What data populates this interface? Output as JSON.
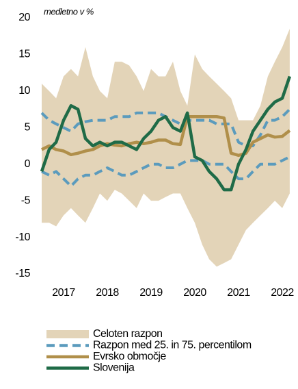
{
  "chart_data": {
    "type": "line",
    "subtitle": "medletno v %",
    "x": [
      2016.5,
      2016.67,
      2016.83,
      2017.0,
      2017.17,
      2017.33,
      2017.5,
      2017.67,
      2017.83,
      2018.0,
      2018.17,
      2018.33,
      2018.5,
      2018.67,
      2018.83,
      2019.0,
      2019.17,
      2019.33,
      2019.5,
      2019.67,
      2019.83,
      2020.0,
      2020.17,
      2020.33,
      2020.5,
      2020.67,
      2020.83,
      2021.0,
      2021.17,
      2021.33,
      2021.5,
      2021.67,
      2021.83,
      2022.0,
      2022.17
    ],
    "xlim": [
      2016.5,
      2022.2
    ],
    "xticks": [
      2017,
      2018,
      2019,
      2020,
      2021,
      2022
    ],
    "ylim": [
      -15,
      20
    ],
    "yticks": [
      20,
      15,
      10,
      5,
      0,
      -5,
      -10,
      -15
    ],
    "series": [
      {
        "name": "Celoten razpon",
        "color": "#e3d4b8",
        "style": "area",
        "values": [
          11,
          10,
          9,
          12,
          13,
          12,
          16,
          12,
          10,
          9,
          14,
          14,
          13.5,
          12,
          10,
          13,
          12,
          12,
          14,
          10,
          8,
          15,
          13,
          12,
          11,
          10,
          9,
          6,
          6,
          6,
          8,
          12,
          14,
          16,
          18.5
        ],
        "lower": [
          -8,
          -8,
          -8.5,
          -7,
          -6,
          -7,
          -8,
          -6,
          -4,
          -5,
          -3.5,
          -4,
          -5,
          -6,
          -4,
          -5,
          -5,
          -4.5,
          -4,
          -4,
          -6,
          -8,
          -11,
          -13,
          -14,
          -13.5,
          -13,
          -11,
          -9,
          -8,
          -7,
          -6,
          -5,
          -6,
          -4
        ]
      },
      {
        "name": "Razpon med 25. in 75. percentilom",
        "color": "#5b9bbd",
        "style": "dashed",
        "values": [
          7,
          6,
          5.5,
          5,
          4.5,
          5.5,
          5.8,
          6,
          6,
          6,
          6.5,
          6.5,
          6.5,
          7,
          7,
          7,
          7,
          6.5,
          6,
          5.5,
          6,
          6,
          6,
          6,
          5.5,
          5.5,
          5.5,
          3,
          2.5,
          2.5,
          4,
          6,
          6,
          6.5,
          7.5
        ],
        "lower": [
          -1,
          -1.5,
          -1,
          -2,
          -3,
          -2,
          -1.5,
          -1.5,
          -1,
          -0.5,
          -1,
          -1.5,
          -1.5,
          -1,
          -0.5,
          0,
          0,
          -0.5,
          -0.5,
          0,
          0.5,
          0.5,
          0.5,
          0,
          0,
          0,
          -1,
          -2,
          -2,
          -1,
          0,
          0,
          0,
          0.5,
          1
        ]
      },
      {
        "name": "Evrsko območje",
        "color": "#b08f4a",
        "style": "solid",
        "values": [
          2,
          2.5,
          2,
          1.8,
          1.3,
          1.5,
          1.8,
          2,
          2.5,
          2.8,
          2.6,
          2.5,
          2.8,
          3,
          2.8,
          3,
          3.3,
          3.3,
          2.8,
          2.7,
          6.5,
          6.5,
          6.5,
          6.5,
          6.5,
          6.3,
          1.5,
          1.2,
          1.5,
          3,
          3.5,
          4,
          3.7,
          3.8,
          4.6
        ]
      },
      {
        "name": "Slovenija",
        "color": "#1f6b47",
        "style": "solid",
        "values": [
          -1,
          2,
          3,
          6,
          8,
          7.5,
          3.5,
          2.5,
          3,
          2.5,
          3,
          3,
          2.5,
          2,
          3.5,
          4.5,
          6,
          6.5,
          5,
          4.5,
          7,
          1,
          0.5,
          -1,
          -2,
          -3.5,
          -3.5,
          0,
          2,
          4.5,
          6,
          7.5,
          8.5,
          9,
          12
        ]
      }
    ]
  }
}
